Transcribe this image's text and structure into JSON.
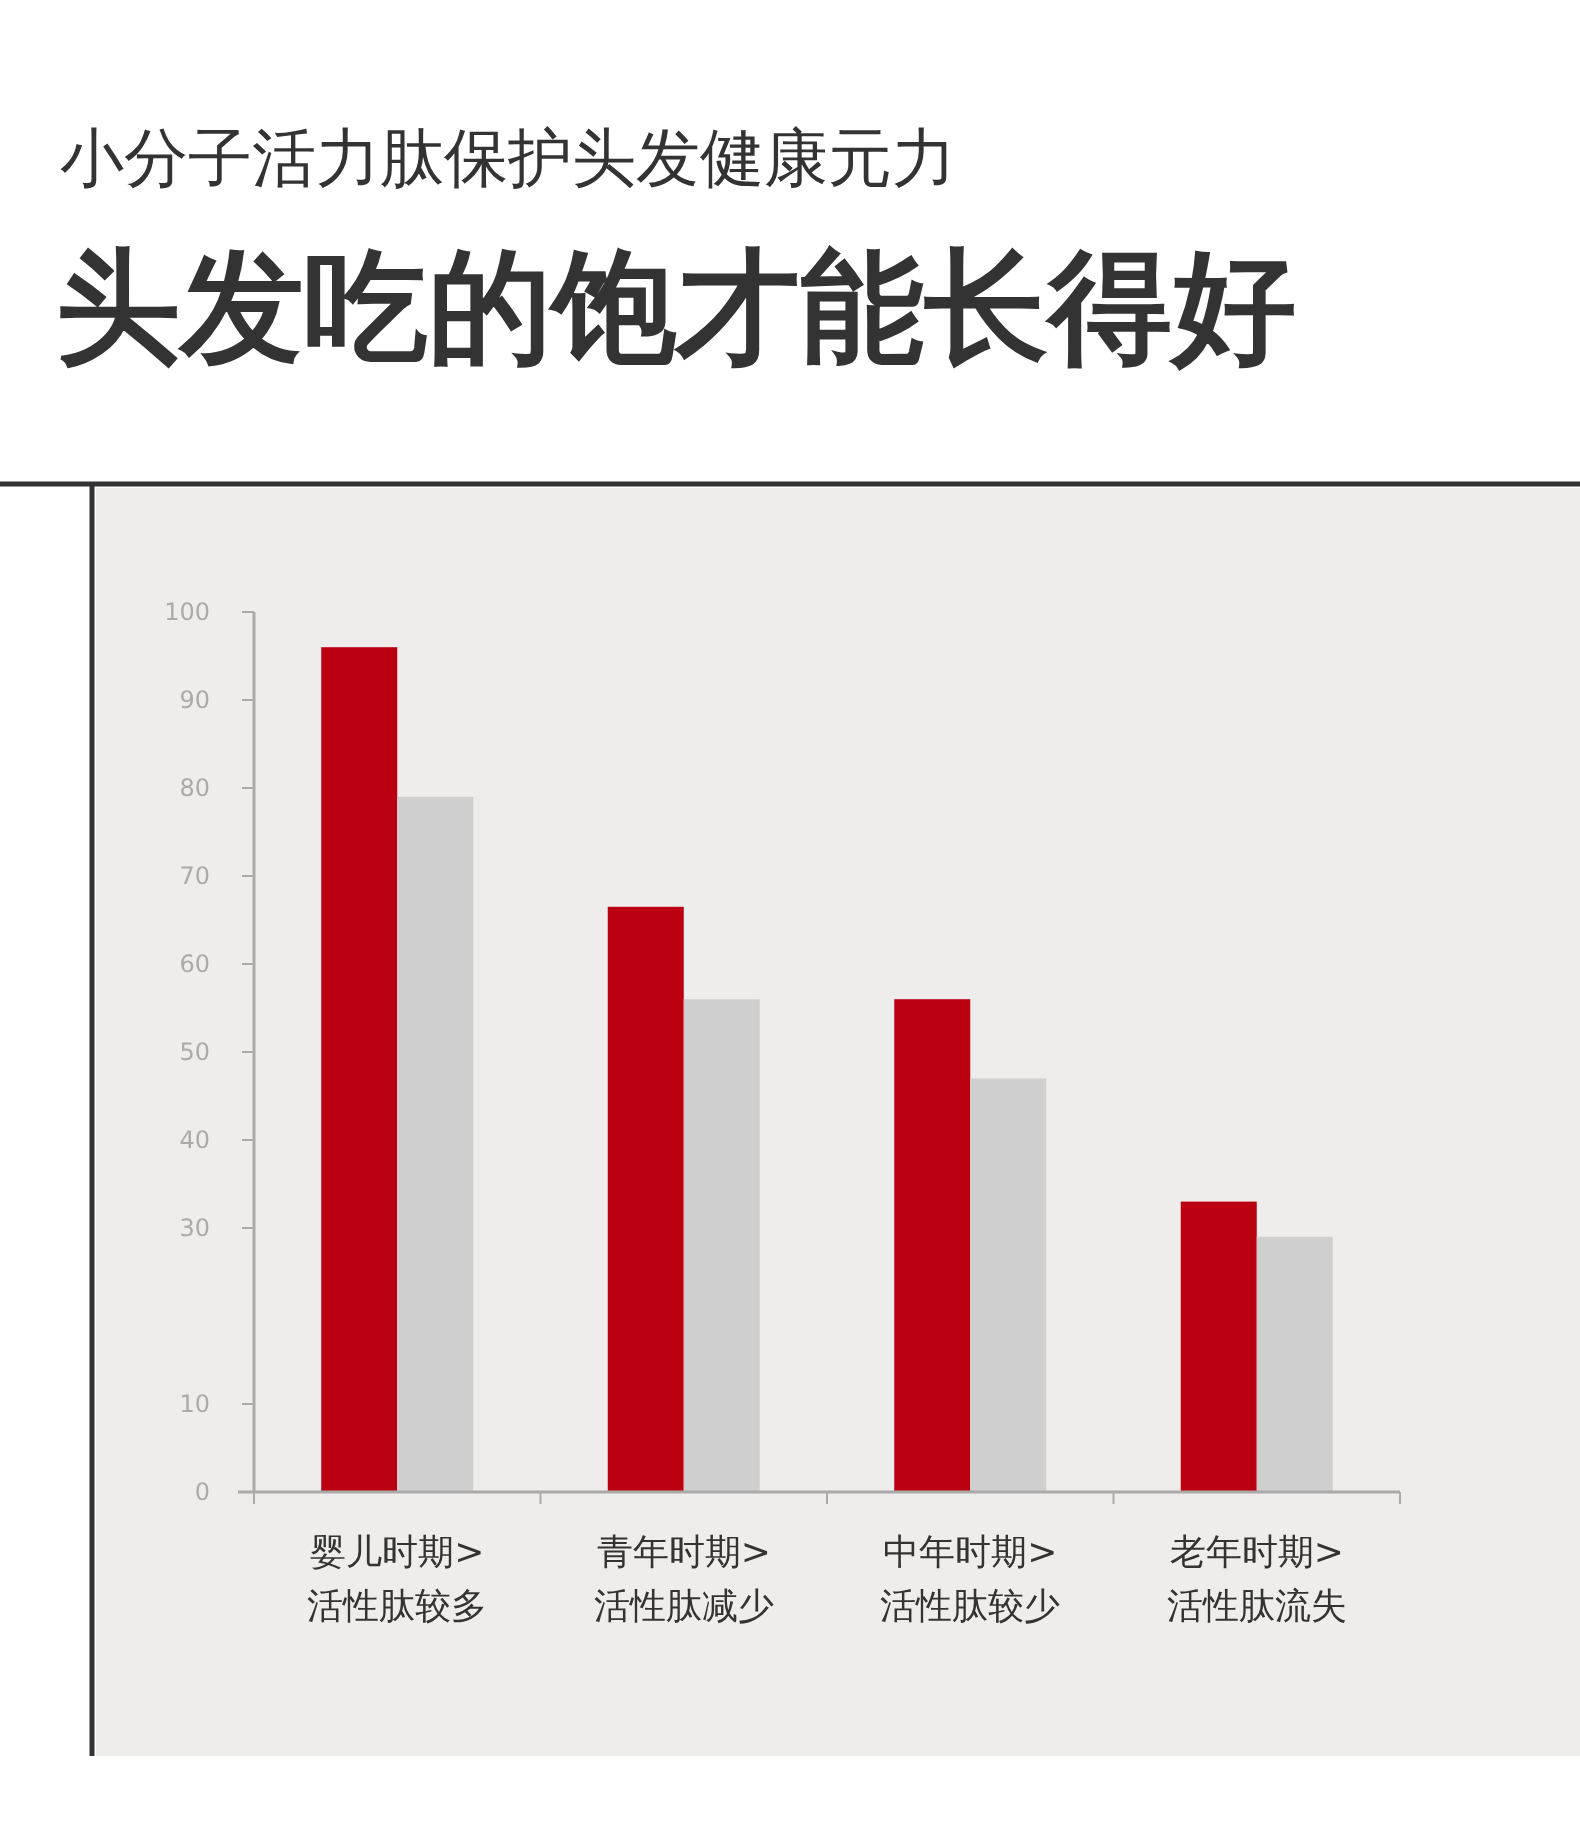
{
  "chart_data": {
    "type": "bar",
    "subtitle": "小分子活力肽保护头发健康元力",
    "title": "头发吃的饱才能长得好",
    "categories": [
      "婴儿时期>\n活性肽较多",
      "青年时期>\n活性肽减少",
      "中年时期>\n活性肽较少",
      "老年时期>\n活性肽流失"
    ],
    "series": [
      {
        "color": "#bb0011",
        "values": [
          96,
          66.5,
          56,
          33
        ]
      },
      {
        "color": "#cfcfcf",
        "values": [
          79,
          56,
          47,
          29
        ]
      }
    ],
    "ylim": [
      0,
      100
    ],
    "yticks": [
      0,
      10,
      30,
      40,
      50,
      60,
      70,
      80,
      90,
      100
    ],
    "grid": false
  }
}
